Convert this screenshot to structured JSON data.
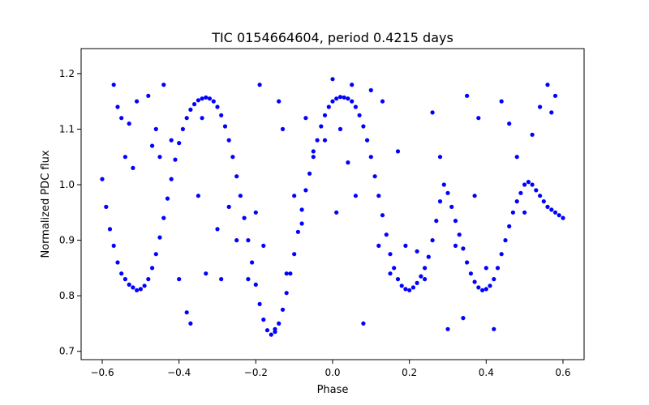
{
  "chart_data": {
    "type": "scatter",
    "title": "TIC 0154664604, period 0.4215 days",
    "xlabel": "Phase",
    "ylabel": "Normalized PDC flux",
    "xlim": [
      -0.655,
      0.655
    ],
    "ylim": [
      0.685,
      1.245
    ],
    "xticks": [
      -0.6,
      -0.4,
      -0.2,
      0.0,
      0.2,
      0.4,
      0.6
    ],
    "xtick_labels": [
      "−0.6",
      "−0.4",
      "−0.2",
      "0.0",
      "0.2",
      "0.4",
      "0.6"
    ],
    "yticks": [
      0.7,
      0.8,
      0.9,
      1.0,
      1.1,
      1.2
    ],
    "ytick_labels": [
      "0.7",
      "0.8",
      "0.9",
      "1.0",
      "1.1",
      "1.2"
    ],
    "grid": false,
    "legend": "none",
    "marker_color": "#0000ff",
    "series": [
      {
        "x": [
          -0.6,
          -0.59,
          -0.58,
          -0.57,
          -0.56,
          -0.55,
          -0.54,
          -0.53,
          -0.52,
          -0.51,
          -0.5,
          -0.49,
          -0.48,
          -0.47,
          -0.46,
          -0.45,
          -0.44,
          -0.43,
          -0.42,
          -0.41,
          -0.4,
          -0.39,
          -0.38,
          -0.37,
          -0.36,
          -0.35,
          -0.34,
          -0.33,
          -0.32,
          -0.31,
          -0.3,
          -0.29,
          -0.28,
          -0.27,
          -0.26,
          -0.25,
          -0.24,
          -0.23,
          -0.22,
          -0.21,
          -0.2,
          -0.19,
          -0.18,
          -0.17,
          -0.16,
          -0.15,
          -0.14,
          -0.13,
          -0.12,
          -0.11,
          -0.1,
          -0.09,
          -0.08,
          -0.07,
          -0.06,
          -0.05,
          -0.04,
          -0.03,
          -0.02,
          -0.01,
          0.0,
          0.01,
          0.02,
          0.03,
          0.04,
          0.05,
          0.06,
          0.07,
          0.08,
          0.09,
          0.1,
          0.11,
          0.12,
          0.13,
          0.14,
          0.15,
          0.16,
          0.17,
          0.18,
          0.19,
          0.2,
          0.21,
          0.22,
          0.23,
          0.24,
          0.25,
          0.26,
          0.27,
          0.28,
          0.29,
          0.3,
          0.31,
          0.32,
          0.33,
          0.34,
          0.35,
          0.36,
          0.37,
          0.38,
          0.39,
          0.4,
          0.41,
          0.42,
          0.43,
          0.44,
          0.45,
          0.46,
          0.47,
          0.48,
          0.49,
          0.5,
          0.51,
          0.52,
          0.53,
          0.54,
          0.55,
          0.56,
          0.57,
          0.58,
          0.59,
          0.6
        ],
        "y": [
          1.01,
          0.96,
          0.92,
          0.89,
          0.86,
          0.84,
          0.83,
          0.82,
          0.815,
          0.81,
          0.812,
          0.818,
          0.83,
          0.85,
          0.875,
          0.905,
          0.94,
          0.975,
          1.01,
          1.045,
          1.075,
          1.1,
          1.12,
          1.135,
          1.145,
          1.152,
          1.155,
          1.157,
          1.155,
          1.15,
          1.14,
          1.125,
          1.105,
          1.08,
          1.05,
          1.015,
          0.98,
          0.94,
          0.9,
          0.86,
          0.82,
          0.785,
          0.757,
          0.738,
          0.73,
          0.735,
          0.75,
          0.775,
          0.805,
          0.84,
          0.875,
          0.915,
          0.955,
          0.99,
          1.02,
          1.05,
          1.08,
          1.105,
          1.125,
          1.14,
          1.15,
          1.155,
          1.158,
          1.157,
          1.155,
          1.15,
          1.14,
          1.125,
          1.105,
          1.08,
          1.05,
          1.015,
          0.98,
          0.945,
          0.91,
          0.875,
          0.85,
          0.83,
          0.818,
          0.812,
          0.81,
          0.815,
          0.823,
          0.835,
          0.85,
          0.87,
          0.9,
          0.935,
          0.97,
          1.0,
          0.985,
          0.96,
          0.935,
          0.91,
          0.885,
          0.86,
          0.84,
          0.825,
          0.815,
          0.81,
          0.812,
          0.818,
          0.83,
          0.85,
          0.875,
          0.9,
          0.925,
          0.95,
          0.97,
          0.985,
          1.0,
          1.005,
          1.0,
          0.99,
          0.98,
          0.97,
          0.96,
          0.955,
          0.95,
          0.945,
          0.94
        ],
        "scatter_x": [
          -0.57,
          -0.56,
          -0.55,
          -0.54,
          -0.53,
          -0.52,
          -0.51,
          -0.48,
          -0.47,
          -0.46,
          -0.45,
          -0.44,
          -0.42,
          -0.4,
          -0.38,
          -0.37,
          -0.35,
          -0.34,
          -0.33,
          -0.3,
          -0.29,
          -0.27,
          -0.25,
          -0.22,
          -0.2,
          -0.19,
          -0.18,
          -0.15,
          -0.14,
          -0.13,
          -0.12,
          -0.1,
          -0.08,
          -0.07,
          -0.05,
          -0.02,
          0.0,
          0.01,
          0.02,
          0.04,
          0.05,
          0.06,
          0.08,
          0.1,
          0.12,
          0.13,
          0.15,
          0.17,
          0.19,
          0.22,
          0.24,
          0.26,
          0.28,
          0.3,
          0.32,
          0.34,
          0.35,
          0.37,
          0.38,
          0.4,
          0.42,
          0.44,
          0.46,
          0.48,
          0.5,
          0.52,
          0.54,
          0.56,
          0.57,
          0.58
        ],
        "scatter_y": [
          1.18,
          1.14,
          1.12,
          1.05,
          1.11,
          1.03,
          1.15,
          1.16,
          1.07,
          1.1,
          1.05,
          1.18,
          1.08,
          0.83,
          0.77,
          0.75,
          0.98,
          1.12,
          0.84,
          0.92,
          0.83,
          0.96,
          0.9,
          0.83,
          0.95,
          1.18,
          0.89,
          0.74,
          1.15,
          1.1,
          0.84,
          0.98,
          0.93,
          1.12,
          1.06,
          1.08,
          1.19,
          0.95,
          1.1,
          1.04,
          1.18,
          0.98,
          0.75,
          1.17,
          0.89,
          1.15,
          0.84,
          1.06,
          0.89,
          0.88,
          0.83,
          1.13,
          1.05,
          0.74,
          0.89,
          0.76,
          1.16,
          0.98,
          1.12,
          0.85,
          0.74,
          1.15,
          1.11,
          1.05,
          0.95,
          1.09,
          1.14,
          1.18,
          1.13,
          1.16
        ]
      }
    ]
  }
}
